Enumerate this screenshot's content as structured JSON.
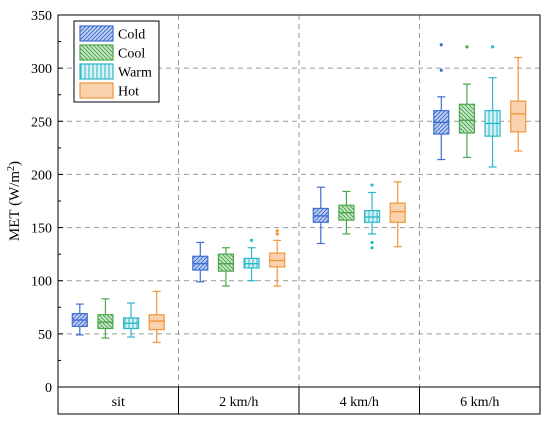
{
  "chart_data": {
    "type": "boxplot",
    "ylabel": "MET (W/m²)",
    "ylabel_main": "MET (W/m",
    "ylabel_sup": "2",
    "ylabel_close": ")",
    "ylim": [
      0,
      350
    ],
    "yticks": [
      0,
      50,
      100,
      150,
      200,
      250,
      300,
      350
    ],
    "categories": [
      "sit",
      "2 km/h",
      "4 km/h",
      "6 km/h"
    ],
    "grid": true,
    "legend_position": "top-left",
    "series": [
      {
        "name": "Cold",
        "color": "#3f6fd1",
        "fill": "#c6d4f2",
        "pattern": "diagonal",
        "boxes": [
          {
            "min": 49,
            "q1": 57,
            "median": 63,
            "q3": 69,
            "max": 78,
            "mean": 63,
            "outliers": []
          },
          {
            "min": 99,
            "q1": 110,
            "median": 116,
            "q3": 123,
            "max": 136,
            "mean": 116,
            "outliers": []
          },
          {
            "min": 135,
            "q1": 155,
            "median": 161,
            "q3": 168,
            "max": 188,
            "mean": 161,
            "outliers": []
          },
          {
            "min": 214,
            "q1": 238,
            "median": 249,
            "q3": 260,
            "max": 273,
            "mean": 249,
            "outliers": [
              298,
              322
            ]
          }
        ]
      },
      {
        "name": "Cool",
        "color": "#4aa84a",
        "fill": "#cfe8cf",
        "pattern": "diagonal-reverse",
        "boxes": [
          {
            "min": 46,
            "q1": 55,
            "median": 61,
            "q3": 68,
            "max": 83,
            "mean": 61,
            "outliers": []
          },
          {
            "min": 95,
            "q1": 109,
            "median": 116,
            "q3": 125,
            "max": 131,
            "mean": 116,
            "outliers": []
          },
          {
            "min": 144,
            "q1": 157,
            "median": 164,
            "q3": 171,
            "max": 184,
            "mean": 164,
            "outliers": []
          },
          {
            "min": 216,
            "q1": 239,
            "median": 251,
            "q3": 266,
            "max": 285,
            "mean": 251,
            "outliers": [
              320
            ]
          }
        ]
      },
      {
        "name": "Warm",
        "color": "#2bb9c9",
        "fill": "#d5f1f4",
        "pattern": "vertical",
        "boxes": [
          {
            "min": 47,
            "q1": 55,
            "median": 60,
            "q3": 65,
            "max": 79,
            "mean": 60,
            "outliers": []
          },
          {
            "min": 100,
            "q1": 112,
            "median": 116,
            "q3": 121,
            "max": 131,
            "mean": 116,
            "outliers": [
              138
            ]
          },
          {
            "min": 144,
            "q1": 155,
            "median": 160,
            "q3": 166,
            "max": 183,
            "mean": 160,
            "outliers": [
              131,
              136,
              190
            ]
          },
          {
            "min": 207,
            "q1": 236,
            "median": 248,
            "q3": 260,
            "max": 291,
            "mean": 248,
            "outliers": [
              320
            ]
          }
        ]
      },
      {
        "name": "Hot",
        "color": "#f0963c",
        "fill": "#fad2ad",
        "pattern": "solid",
        "boxes": [
          {
            "min": 42,
            "q1": 54,
            "median": 62,
            "q3": 68,
            "max": 90,
            "mean": 62,
            "outliers": []
          },
          {
            "min": 95,
            "q1": 113,
            "median": 119,
            "q3": 126,
            "max": 138,
            "mean": 119,
            "outliers": [
              144,
              147
            ]
          },
          {
            "min": 132,
            "q1": 155,
            "median": 165,
            "q3": 173,
            "max": 193,
            "mean": 165,
            "outliers": []
          },
          {
            "min": 222,
            "q1": 240,
            "median": 257,
            "q3": 269,
            "max": 310,
            "mean": 257,
            "outliers": []
          }
        ]
      }
    ]
  }
}
